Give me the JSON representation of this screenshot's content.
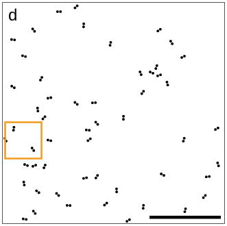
{
  "panel_label": "d"
}
